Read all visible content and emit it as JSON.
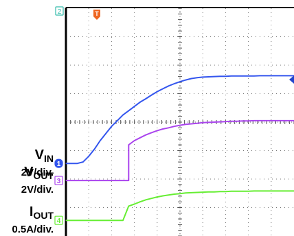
{
  "chart_data": {
    "type": "line",
    "x": [
      0,
      0.25,
      0.5,
      0.75,
      1,
      1.25,
      1.5,
      1.75,
      2,
      2.25,
      2.5,
      2.75,
      3,
      3.25,
      3.5,
      3.75,
      4,
      4.25,
      4.5,
      4.75,
      5,
      5.25,
      5.5,
      5.75,
      6,
      6.25,
      6.5,
      6.75,
      7,
      7.25,
      7.5,
      7.75,
      8,
      8.25,
      8.5,
      8.75,
      9,
      9.25,
      9.5,
      9.75,
      10
    ],
    "xlim": [
      0,
      10
    ],
    "ylim": [
      0,
      8
    ],
    "grid": true,
    "series": [
      {
        "name": "V_IN",
        "color": "#3355ee",
        "channel": "1",
        "ground": 2.55,
        "values": [
          2.55,
          2.55,
          2.55,
          2.6,
          2.8,
          3.05,
          3.35,
          3.6,
          3.85,
          4.05,
          4.25,
          4.4,
          4.55,
          4.7,
          4.82,
          4.95,
          5.07,
          5.17,
          5.27,
          5.35,
          5.42,
          5.48,
          5.53,
          5.56,
          5.58,
          5.59,
          5.6,
          5.61,
          5.61,
          5.62,
          5.62,
          5.62,
          5.62,
          5.62,
          5.63,
          5.63,
          5.63,
          5.63,
          5.63,
          5.63,
          5.63
        ]
      },
      {
        "name": "V_OUT",
        "color": "#aa44ee",
        "channel": "3",
        "ground": 1.95,
        "values": [
          1.95,
          1.95,
          1.95,
          1.95,
          1.95,
          1.95,
          1.95,
          1.95,
          1.95,
          1.95,
          1.95,
          3.2,
          3.35,
          3.45,
          3.55,
          3.63,
          3.7,
          3.76,
          3.8,
          3.85,
          3.89,
          3.92,
          3.94,
          3.96,
          3.98,
          3.99,
          4.0,
          4.01,
          4.02,
          4.03,
          4.03,
          4.04,
          4.04,
          4.05,
          4.05,
          4.05,
          4.05,
          4.05,
          4.05,
          4.05,
          4.05
        ]
      },
      {
        "name": "I_OUT",
        "color": "#66ee33",
        "channel": "4",
        "ground": 0.55,
        "values": [
          0.55,
          0.55,
          0.55,
          0.55,
          0.55,
          0.55,
          0.55,
          0.55,
          0.55,
          0.55,
          0.55,
          1.05,
          1.12,
          1.2,
          1.27,
          1.32,
          1.37,
          1.41,
          1.44,
          1.47,
          1.49,
          1.51,
          1.52,
          1.53,
          1.54,
          1.55,
          1.55,
          1.56,
          1.56,
          1.57,
          1.57,
          1.57,
          1.57,
          1.58,
          1.58,
          1.58,
          1.58,
          1.58,
          1.58,
          1.58,
          1.58
        ]
      }
    ],
    "channel_labels": [
      {
        "channel": "1",
        "name": "V",
        "sub": "IN",
        "scale": "2V/div.",
        "color": "#3355ee"
      },
      {
        "channel": "3",
        "name": "V",
        "sub": "OUT",
        "scale": "2V/div.",
        "color": "#aa44ee"
      },
      {
        "channel": "4",
        "name": "I",
        "sub": "OUT",
        "scale": "0.5A/div.",
        "color": "#66ee33"
      }
    ],
    "channel_2_marker": {
      "label": "2",
      "color": "#33bbaa"
    },
    "trigger_marker": {
      "label": "T",
      "color": "#ee6622"
    },
    "trigger_level_marker_color": "#2244cc"
  }
}
